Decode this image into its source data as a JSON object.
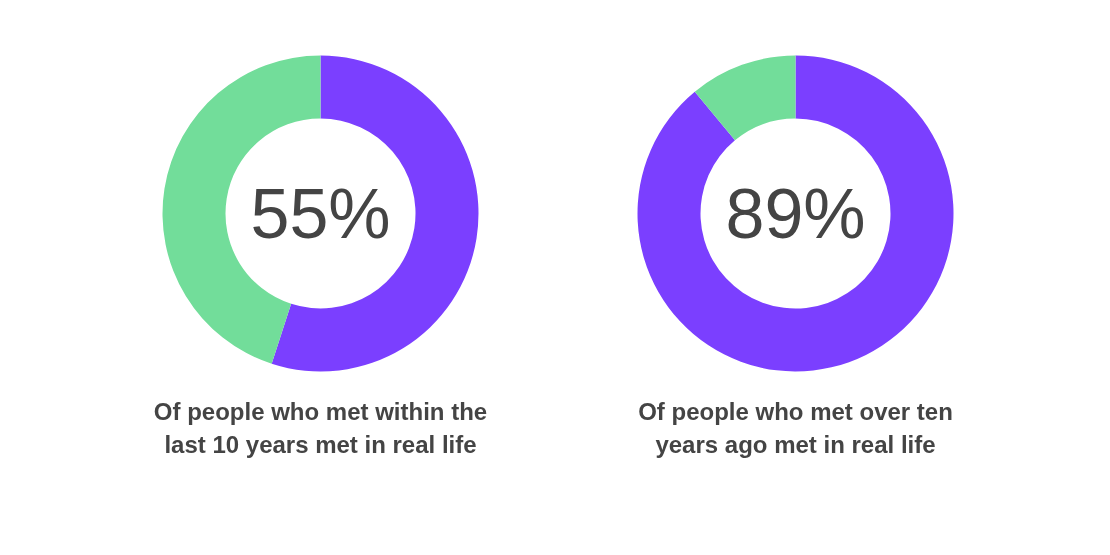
{
  "chart_data": [
    {
      "type": "donut",
      "title": "Of people who met within the last 10 years met in real life",
      "categories": [
        null,
        null
      ],
      "values": [
        55,
        45
      ],
      "colors": [
        "#7b3fff",
        "#72dd9a"
      ],
      "value_labels": [
        "55%",
        null
      ]
    },
    {
      "type": "donut",
      "title": "Of people who met over ten years ago met in real life",
      "categories": [
        null,
        null
      ],
      "values": [
        89,
        11
      ],
      "colors": [
        "#7b3fff",
        "#72dd9a"
      ],
      "value_labels": [
        "89%",
        null
      ]
    }
  ]
}
